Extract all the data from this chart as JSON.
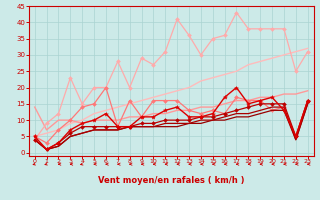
{
  "title": "",
  "xlabel": "Vent moyen/en rafales ( km/h )",
  "ylabel": "",
  "xlim": [
    -0.5,
    23.5
  ],
  "ylim": [
    -1,
    45
  ],
  "yticks": [
    0,
    5,
    10,
    15,
    20,
    25,
    30,
    35,
    40,
    45
  ],
  "xticks": [
    0,
    1,
    2,
    3,
    4,
    5,
    6,
    7,
    8,
    9,
    10,
    11,
    12,
    13,
    14,
    15,
    16,
    17,
    18,
    19,
    20,
    21,
    22,
    23
  ],
  "bg_color": "#cceae8",
  "grid_color": "#aad4d2",
  "series": [
    {
      "x": [
        0,
        1,
        2,
        3,
        4,
        5,
        6,
        7,
        8,
        9,
        10,
        11,
        12,
        13,
        14,
        15,
        16,
        17,
        18,
        19,
        20,
        21,
        22,
        23
      ],
      "y": [
        5,
        6,
        7,
        9,
        10,
        12,
        13,
        14,
        15,
        16,
        17,
        18,
        19,
        20,
        22,
        23,
        24,
        25,
        27,
        28,
        29,
        30,
        31,
        32
      ],
      "color": "#ffbbbb",
      "linewidth": 1.0,
      "marker": null,
      "zorder": 2
    },
    {
      "x": [
        0,
        1,
        2,
        3,
        4,
        5,
        6,
        7,
        8,
        9,
        10,
        11,
        12,
        13,
        14,
        15,
        16,
        17,
        18,
        19,
        20,
        21,
        22,
        23
      ],
      "y": [
        4,
        9,
        12,
        23,
        15,
        20,
        20,
        28,
        20,
        29,
        27,
        31,
        41,
        36,
        30,
        35,
        36,
        43,
        38,
        38,
        38,
        38,
        25,
        31
      ],
      "color": "#ffaaaa",
      "linewidth": 0.9,
      "marker": "D",
      "markersize": 2.0,
      "zorder": 3
    },
    {
      "x": [
        0,
        1,
        2,
        3,
        4,
        5,
        6,
        7,
        8,
        9,
        10,
        11,
        12,
        13,
        14,
        15,
        16,
        17,
        18,
        19,
        20,
        21,
        22,
        23
      ],
      "y": [
        14,
        7,
        10,
        10,
        9,
        10,
        10,
        10,
        11,
        11,
        12,
        12,
        13,
        13,
        14,
        14,
        15,
        16,
        16,
        17,
        17,
        18,
        18,
        19
      ],
      "color": "#ff9999",
      "linewidth": 1.0,
      "marker": null,
      "zorder": 2
    },
    {
      "x": [
        0,
        1,
        2,
        3,
        4,
        5,
        6,
        7,
        8,
        9,
        10,
        11,
        12,
        13,
        14,
        15,
        16,
        17,
        18,
        19,
        20,
        21,
        22,
        23
      ],
      "y": [
        5,
        3,
        7,
        10,
        14,
        15,
        20,
        8,
        16,
        11,
        16,
        16,
        16,
        13,
        12,
        13,
        12,
        17,
        16,
        16,
        13,
        14,
        5,
        16
      ],
      "color": "#ff7777",
      "linewidth": 0.9,
      "marker": "D",
      "markersize": 2.0,
      "zorder": 4
    },
    {
      "x": [
        0,
        1,
        2,
        3,
        4,
        5,
        6,
        7,
        8,
        9,
        10,
        11,
        12,
        13,
        14,
        15,
        16,
        17,
        18,
        19,
        20,
        21,
        22,
        23
      ],
      "y": [
        5,
        1,
        3,
        7,
        9,
        10,
        12,
        8,
        8,
        11,
        11,
        13,
        14,
        11,
        11,
        12,
        17,
        20,
        15,
        16,
        17,
        13,
        5,
        16
      ],
      "color": "#dd0000",
      "linewidth": 1.0,
      "marker": "*",
      "markersize": 3.0,
      "zorder": 6
    },
    {
      "x": [
        0,
        1,
        2,
        3,
        4,
        5,
        6,
        7,
        8,
        9,
        10,
        11,
        12,
        13,
        14,
        15,
        16,
        17,
        18,
        19,
        20,
        21,
        22,
        23
      ],
      "y": [
        4,
        1,
        3,
        6,
        8,
        8,
        8,
        8,
        8,
        9,
        9,
        10,
        10,
        10,
        11,
        11,
        12,
        13,
        14,
        15,
        15,
        15,
        5,
        16
      ],
      "color": "#bb0000",
      "linewidth": 0.9,
      "marker": "D",
      "markersize": 2.0,
      "zorder": 5
    },
    {
      "x": [
        0,
        1,
        2,
        3,
        4,
        5,
        6,
        7,
        8,
        9,
        10,
        11,
        12,
        13,
        14,
        15,
        16,
        17,
        18,
        19,
        20,
        21,
        22,
        23
      ],
      "y": [
        4,
        1,
        2,
        5,
        6,
        7,
        7,
        7,
        8,
        8,
        8,
        8,
        8,
        9,
        9,
        10,
        10,
        11,
        11,
        12,
        13,
        13,
        4,
        15
      ],
      "color": "#990000",
      "linewidth": 0.9,
      "marker": null,
      "zorder": 4
    },
    {
      "x": [
        0,
        1,
        2,
        3,
        4,
        5,
        6,
        7,
        8,
        9,
        10,
        11,
        12,
        13,
        14,
        15,
        16,
        17,
        18,
        19,
        20,
        21,
        22,
        23
      ],
      "y": [
        4,
        1,
        2,
        5,
        6,
        7,
        7,
        7,
        8,
        8,
        8,
        9,
        9,
        9,
        10,
        10,
        11,
        12,
        12,
        13,
        14,
        14,
        4,
        15
      ],
      "color": "#aa0000",
      "linewidth": 0.9,
      "marker": null,
      "zorder": 4
    }
  ],
  "arrow_color": "#cc0000",
  "arrow_directions": [
    225,
    225,
    270,
    270,
    225,
    270,
    270,
    270,
    270,
    270,
    270,
    270,
    270,
    270,
    270,
    270,
    270,
    270,
    270,
    270,
    270,
    270,
    270,
    270
  ]
}
